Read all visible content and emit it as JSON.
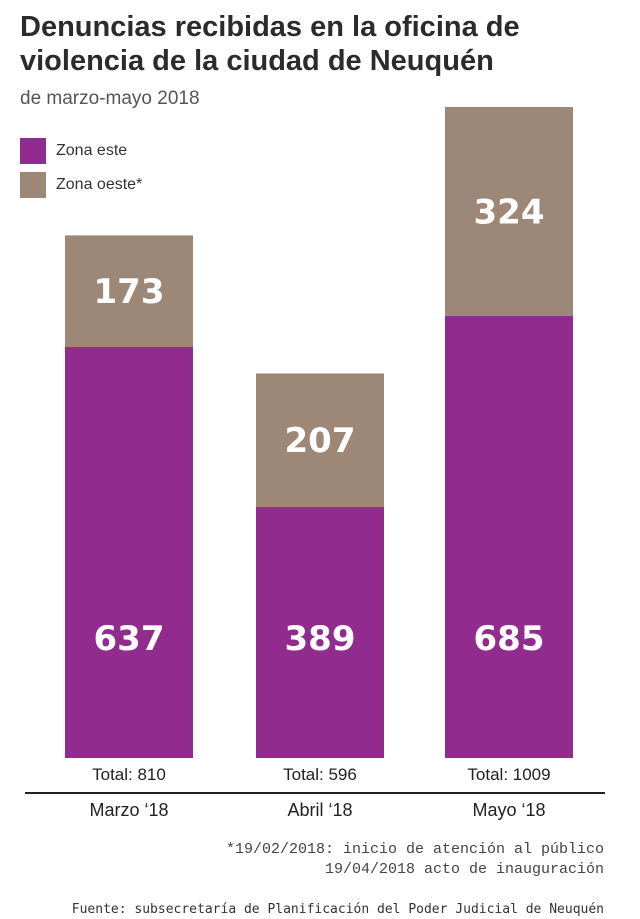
{
  "chart_data": {
    "type": "bar",
    "stacked": true,
    "title": "Denuncias recibidas en la oficina de\nviolencia de la ciudad de Neuquén",
    "subtitle": "de marzo-mayo 2018",
    "categories": [
      "Marzo ‘18",
      "Abril ‘18",
      "Mayo ‘18"
    ],
    "series": [
      {
        "name": "Zona este",
        "values": [
          637,
          389,
          685
        ],
        "color": "#922b8e"
      },
      {
        "name": "Zona oeste*",
        "values": [
          173,
          207,
          324
        ],
        "color": "#9d8878"
      }
    ],
    "totals": [
      "Total: 810",
      "Total: 596",
      "Total: 1009"
    ],
    "ylim": [
      0,
      1009
    ],
    "grid": false,
    "legend_position": "top-left"
  },
  "footnotes": [
    "*19/02/2018: inicio de atención al público",
    "19/04/2018 acto de inauguración"
  ],
  "source": "Fuente: subsecretaría de Planificación del Poder Judicial de Neuquén"
}
